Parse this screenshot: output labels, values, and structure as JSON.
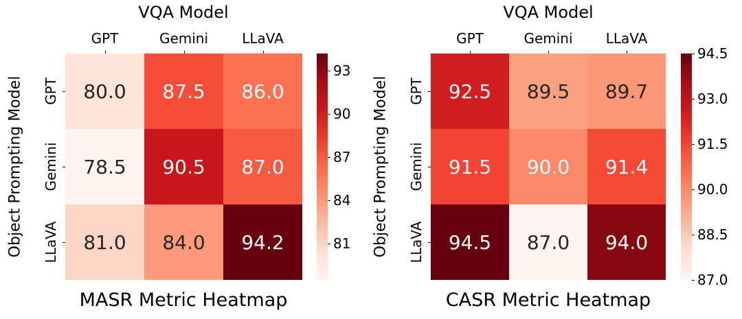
{
  "figure": {
    "background": "#ffffff",
    "colormap_name": "Reds",
    "colormap_stops": [
      "#fff5f0",
      "#fee0d2",
      "#fcbba1",
      "#fc9272",
      "#fb6a4a",
      "#ef3b2c",
      "#cb181d",
      "#a50f15",
      "#67000d"
    ],
    "annotation_dark_text_color": "#262626",
    "annotation_light_text_color": "#ffffff",
    "axis_text_color": "#000000"
  },
  "chart_data": [
    {
      "type": "heatmap",
      "title": "VQA Model",
      "xlabel": "MASR Metric Heatmap",
      "ylabel": "Object Prompting Model",
      "categories_x": [
        "GPT",
        "Gemini",
        "LLaVA"
      ],
      "categories_y": [
        "GPT",
        "Gemini",
        "LLaVA"
      ],
      "values": [
        [
          80.0,
          87.5,
          86.0
        ],
        [
          78.5,
          90.5,
          87.0
        ],
        [
          81.0,
          84.0,
          94.2
        ]
      ],
      "vmin": 78.5,
      "vmax": 94.2,
      "colorbar_position": "right",
      "colorbar_ticks": [
        93,
        90,
        87,
        84,
        81
      ],
      "colorbar_tick_labels": [
        "93",
        "90",
        "87",
        "84",
        "81"
      ],
      "grid": false,
      "legend": false
    },
    {
      "type": "heatmap",
      "title": "VQA Model",
      "xlabel": "CASR Metric Heatmap",
      "ylabel": "Object Prompting Model",
      "categories_x": [
        "GPT",
        "Gemini",
        "LLaVA"
      ],
      "categories_y": [
        "GPT",
        "Gemini",
        "LLaVA"
      ],
      "values": [
        [
          92.5,
          89.5,
          89.7
        ],
        [
          91.5,
          90.0,
          91.4
        ],
        [
          94.5,
          87.0,
          94.0
        ]
      ],
      "vmin": 87.0,
      "vmax": 94.5,
      "colorbar_position": "right",
      "colorbar_ticks": [
        94.5,
        93.0,
        91.5,
        90.0,
        88.5,
        87.0
      ],
      "colorbar_tick_labels": [
        "94.5",
        "93.0",
        "91.5",
        "90.0",
        "88.5",
        "87.0"
      ],
      "grid": false,
      "legend": false
    }
  ]
}
